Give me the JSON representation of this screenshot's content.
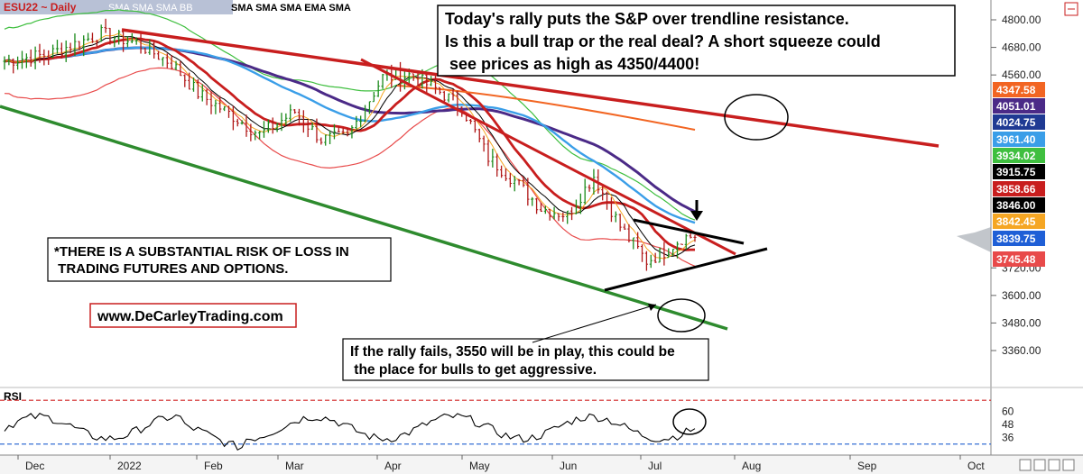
{
  "chart_data": {
    "type": "candlestick",
    "symbol_label": "ESU22 ~ Daily",
    "indicator_labels": [
      "SMA SMA SMA BB",
      "SMA SMA SMA EMA SMA"
    ],
    "x_ticks": [
      "Dec",
      "2022",
      "Feb",
      "Mar",
      "Apr",
      "May",
      "Jun",
      "Jul",
      "Aug",
      "Sep",
      "Oct"
    ],
    "y_ticks": [
      4800,
      4680,
      4560,
      3720,
      3600,
      3480,
      3360
    ],
    "y_range": [
      3230,
      4850
    ],
    "price_badges": [
      {
        "value": "4347.58",
        "color": "#f26522"
      },
      {
        "value": "4051.01",
        "color": "#4b2a87"
      },
      {
        "value": "4024.75",
        "color": "#1f3a93"
      },
      {
        "value": "3961.40",
        "color": "#3a9ee8"
      },
      {
        "value": "3934.02",
        "color": "#3fbf3f"
      },
      {
        "value": "3915.75",
        "color": "#000000"
      },
      {
        "value": "3858.66",
        "color": "#c81e1e"
      },
      {
        "value": "3846.00",
        "color": "#000000"
      },
      {
        "value": "3842.45",
        "color": "#f5a623"
      },
      {
        "value": "3839.75",
        "color": "#1f5fd6"
      },
      {
        "value": "3745.48",
        "color": "#e84a4a"
      }
    ],
    "annotations": {
      "top_text": [
        "Today's rally puts the S&P over trendline resistance.",
        "Is this a bull trap or the real deal? A short squeeze could",
        " see prices as high as 4350/4400!"
      ],
      "risk_text": [
        "*THERE IS A SUBSTANTIAL RISK OF LOSS IN",
        " TRADING FUTURES AND OPTIONS."
      ],
      "website": "www.DeCarleyTrading.com",
      "bottom_text": [
        "If the rally fails, 3550 will be in play, this could be",
        " the place for bulls to get aggressive."
      ]
    },
    "rsi": {
      "label": "RSI",
      "y_ticks": [
        60,
        48,
        36
      ],
      "overbought": 70,
      "oversold": 30
    },
    "colors": {
      "upper_trendline": "#c81e1e",
      "lower_trendline": "#2e8b2e",
      "bollinger": "#3fbf3f",
      "sma_purple": "#4b2a87",
      "sma_blue": "#3a9ee8",
      "sma_orange": "#f26522",
      "ema_red": "#c81e1e"
    }
  }
}
